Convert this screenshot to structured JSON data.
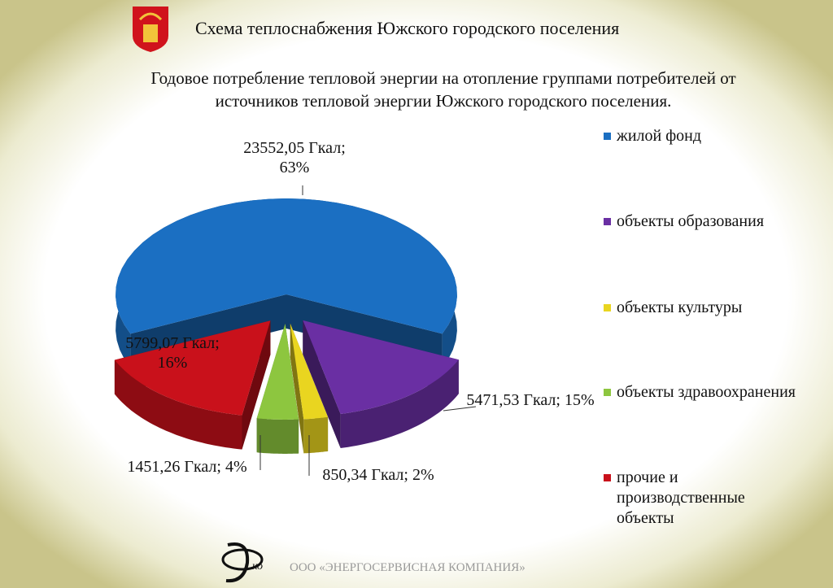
{
  "header": {
    "title": "Схема теплоснабжения Южского городского поселения"
  },
  "chart_data": {
    "type": "pie",
    "title": "Годовое потребление тепловой энергии на отопление группами потребителей от источников тепловой энергии Южского городского поселения.",
    "series": [
      {
        "name": "жилой фонд",
        "color": "#1b6fc2",
        "values": [
          23552.05
        ],
        "value_labels": [
          "23552,05 Гкал; 63%"
        ]
      },
      {
        "name": "объекты образования",
        "color": "#6a2fa3",
        "values": [
          5471.53
        ],
        "value_labels": [
          "5471,53 Гкал; 15%"
        ]
      },
      {
        "name": "объекты культуры",
        "color": "#e9d520",
        "values": [
          850.34
        ],
        "value_labels": [
          "850,34 Гкал; 2%"
        ]
      },
      {
        "name": "объекты здравоохранения",
        "color": "#8dc63f",
        "values": [
          1451.26
        ],
        "value_labels": [
          "1451,26 Гкал; 4%"
        ]
      },
      {
        "name": "прочие и производственные объекты",
        "color": "#c9111b",
        "values": [
          5799.07
        ],
        "value_labels": [
          "5799,07 Гкал; 16%"
        ]
      }
    ],
    "legend": "right"
  },
  "footer": {
    "logo_text": "ко",
    "company": "ООО «ЭНЕРГОСЕРВИСНАЯ КОМПАНИЯ»"
  }
}
